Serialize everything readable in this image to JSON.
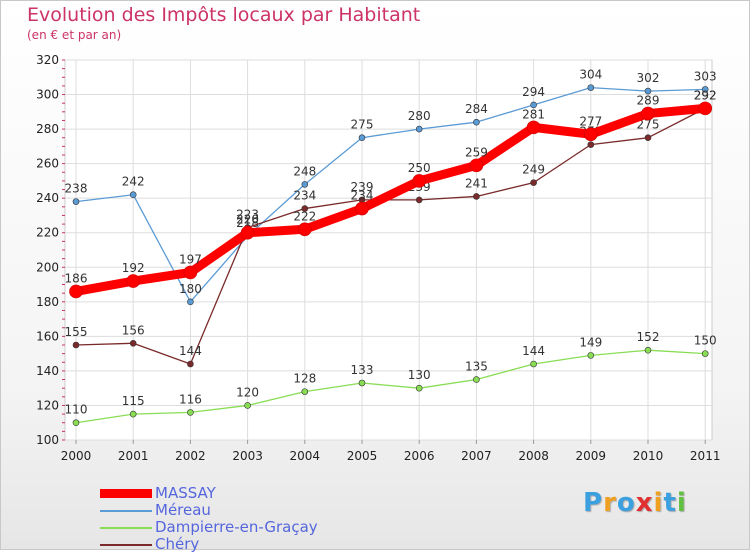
{
  "header": {
    "title": "Evolution des Impôts locaux par Habitant",
    "subtitle": "(en € et par an)"
  },
  "logo": {
    "text": "Proxiti",
    "colors": [
      "#3aa0e0",
      "#f0a020",
      "#3aa0e0",
      "#e03030",
      "#f0a020",
      "#3aa0e0",
      "#60c040"
    ]
  },
  "chart_data": {
    "type": "line",
    "x": [
      "2000",
      "2001",
      "2002",
      "2003",
      "2004",
      "2005",
      "2006",
      "2007",
      "2008",
      "2009",
      "2010",
      "2011"
    ],
    "ylim": [
      100,
      320
    ],
    "yticks": [
      100,
      120,
      140,
      160,
      180,
      200,
      220,
      240,
      260,
      280,
      300,
      320
    ],
    "grid": true,
    "legend_position": "bottom-left",
    "series": [
      {
        "name": "Méreau",
        "color": "#5b9bd5",
        "values": [
          238,
          242,
          180,
          218,
          248,
          275,
          280,
          284,
          294,
          304,
          302,
          303
        ]
      },
      {
        "name": "Dampierre-en-Graçay",
        "color": "#88dd55",
        "values": [
          110,
          115,
          116,
          120,
          128,
          133,
          130,
          135,
          144,
          149,
          152,
          150
        ]
      },
      {
        "name": "Chéry",
        "color": "#7a2a2a",
        "values": [
          155,
          156,
          144,
          223,
          234,
          239,
          239,
          241,
          249,
          271,
          275,
          292
        ]
      },
      {
        "name": "MASSAY",
        "color": "#ff0000",
        "values": [
          186,
          192,
          197,
          220,
          222,
          234,
          250,
          259,
          281,
          277,
          289,
          292
        ]
      }
    ]
  }
}
